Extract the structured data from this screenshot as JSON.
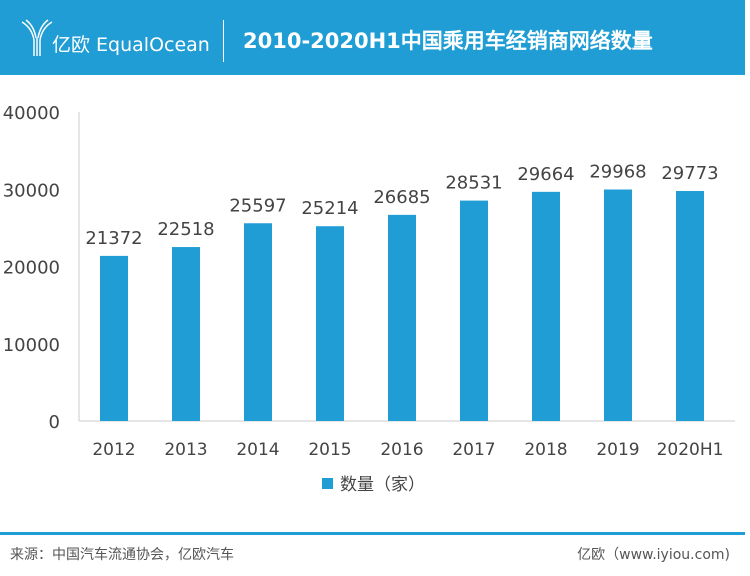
{
  "header": {
    "brand": "亿欧 EqualOcean",
    "title": "2010-2020H1中国乘用车经销商网络数量"
  },
  "chart_data": {
    "type": "bar",
    "title": "2010-2020H1中国乘用车经销商网络数量",
    "categories": [
      "2012",
      "2013",
      "2014",
      "2015",
      "2016",
      "2017",
      "2018",
      "2019",
      "2020H1"
    ],
    "series": [
      {
        "name": "数量（家）",
        "values": [
          21372,
          22518,
          25597,
          25214,
          26685,
          28531,
          29664,
          29968,
          29773
        ]
      }
    ],
    "ylim": [
      0,
      40000
    ],
    "yticks": [
      "0",
      "10000",
      "20000",
      "30000",
      "40000"
    ],
    "legend": "bottom",
    "color": "#1f9dd4"
  },
  "footer": {
    "source": "来源：中国汽车流通协会，亿欧汽车",
    "site": "亿欧（www.iyiou.com)"
  }
}
